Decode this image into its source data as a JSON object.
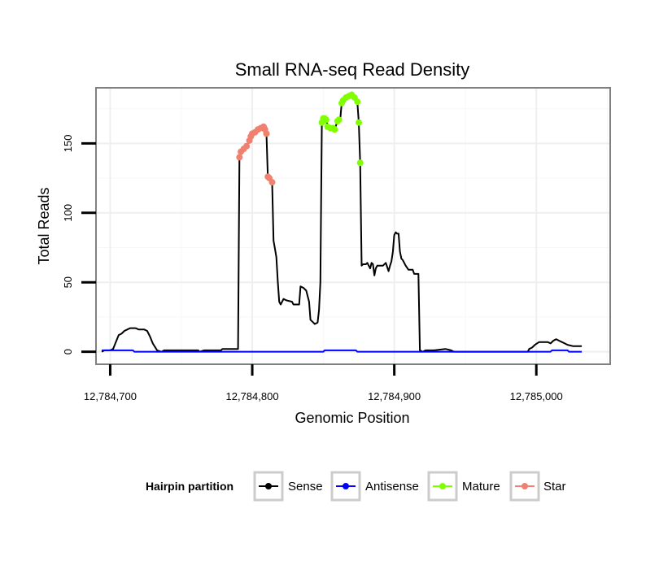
{
  "chart_data": {
    "type": "line",
    "title": "Small RNA-seq Read Density",
    "xlabel": "Genomic Position",
    "ylabel": "Total Reads",
    "xlim": [
      12784690,
      12785052
    ],
    "ylim": [
      -9,
      190
    ],
    "x_ticks": [
      12784700,
      12784800,
      12784900,
      12785000
    ],
    "x_tick_labels": [
      "12,784,700",
      "12,784,800",
      "12,784,900",
      "12,785,000"
    ],
    "y_ticks": [
      0,
      50,
      100,
      150
    ],
    "y_tick_labels": [
      "0",
      "50",
      "100",
      "150"
    ],
    "grid": true,
    "legend": {
      "title": "Hairpin partition",
      "position": "bottom",
      "entries": [
        {
          "label": "Sense",
          "color": "#000000"
        },
        {
          "label": "Antisense",
          "color": "#0000ff"
        },
        {
          "label": "Mature",
          "color": "#7fff00"
        },
        {
          "label": "Star",
          "color": "#f08070"
        }
      ]
    },
    "series": [
      {
        "name": "Sense",
        "color": "#000000",
        "style": "line",
        "points": [
          [
            12784694,
            0
          ],
          [
            12784696,
            1
          ],
          [
            12784700,
            1
          ],
          [
            12784702,
            2
          ],
          [
            12784704,
            7
          ],
          [
            12784706,
            12
          ],
          [
            12784708,
            13
          ],
          [
            12784710,
            15
          ],
          [
            12784712,
            16
          ],
          [
            12784714,
            17
          ],
          [
            12784718,
            17
          ],
          [
            12784720,
            16
          ],
          [
            12784724,
            16
          ],
          [
            12784726,
            15
          ],
          [
            12784728,
            11
          ],
          [
            12784730,
            6
          ],
          [
            12784733,
            1
          ],
          [
            12784736,
            0
          ],
          [
            12784738,
            1
          ],
          [
            12784762,
            1
          ],
          [
            12784763,
            0
          ],
          [
            12784766,
            1
          ],
          [
            12784778,
            1
          ],
          [
            12784779,
            2
          ],
          [
            12784790,
            2
          ],
          [
            12784791,
            140
          ],
          [
            12784792,
            144
          ],
          [
            12784794,
            146
          ],
          [
            12784796,
            148
          ],
          [
            12784798,
            152
          ],
          [
            12784800,
            157
          ],
          [
            12784802,
            158
          ],
          [
            12784804,
            160
          ],
          [
            12784806,
            161
          ],
          [
            12784808,
            162
          ],
          [
            12784809,
            160
          ],
          [
            12784810,
            157
          ],
          [
            12784811,
            126
          ],
          [
            12784812,
            125
          ],
          [
            12784814,
            122
          ],
          [
            12784815,
            80
          ],
          [
            12784816,
            74
          ],
          [
            12784817,
            68
          ],
          [
            12784818,
            50
          ],
          [
            12784819,
            36
          ],
          [
            12784820,
            34
          ],
          [
            12784822,
            38
          ],
          [
            12784824,
            37
          ],
          [
            12784828,
            36
          ],
          [
            12784829,
            34
          ],
          [
            12784833,
            34
          ],
          [
            12784834,
            47
          ],
          [
            12784836,
            46
          ],
          [
            12784838,
            44
          ],
          [
            12784840,
            36
          ],
          [
            12784841,
            23
          ],
          [
            12784843,
            21
          ],
          [
            12784844,
            20
          ],
          [
            12784846,
            21
          ],
          [
            12784847,
            30
          ],
          [
            12784848,
            50
          ],
          [
            12784849,
            165
          ],
          [
            12784850,
            168
          ],
          [
            12784852,
            168
          ],
          [
            12784853,
            162
          ],
          [
            12784855,
            161
          ],
          [
            12784857,
            161
          ],
          [
            12784858,
            160
          ],
          [
            12784860,
            166
          ],
          [
            12784862,
            168
          ],
          [
            12784863,
            179
          ],
          [
            12784864,
            181
          ],
          [
            12784866,
            183
          ],
          [
            12784868,
            184
          ],
          [
            12784870,
            185
          ],
          [
            12784872,
            183
          ],
          [
            12784874,
            180
          ],
          [
            12784875,
            165
          ],
          [
            12784876,
            136
          ],
          [
            12784877,
            62
          ],
          [
            12784878,
            63
          ],
          [
            12784880,
            63
          ],
          [
            12784881,
            64
          ],
          [
            12784882,
            62
          ],
          [
            12784883,
            60
          ],
          [
            12784884,
            64
          ],
          [
            12784885,
            63
          ],
          [
            12784886,
            55
          ],
          [
            12784887,
            60
          ],
          [
            12784888,
            62
          ],
          [
            12784892,
            62
          ],
          [
            12784894,
            64
          ],
          [
            12784896,
            58
          ],
          [
            12784897,
            62
          ],
          [
            12784898,
            65
          ],
          [
            12784899,
            72
          ],
          [
            12784900,
            84
          ],
          [
            12784901,
            86
          ],
          [
            12784902,
            85
          ],
          [
            12784903,
            85
          ],
          [
            12784904,
            72
          ],
          [
            12784905,
            67
          ],
          [
            12784906,
            66
          ],
          [
            12784908,
            62
          ],
          [
            12784910,
            59
          ],
          [
            12784911,
            59
          ],
          [
            12784913,
            59
          ],
          [
            12784914,
            56
          ],
          [
            12784917,
            56
          ],
          [
            12784918,
            1
          ],
          [
            12784920,
            0
          ],
          [
            12784922,
            1
          ],
          [
            12784928,
            1
          ],
          [
            12784936,
            2
          ],
          [
            12784940,
            1
          ],
          [
            12784942,
            0
          ],
          [
            12784950,
            0
          ],
          [
            12784968,
            0
          ],
          [
            12784994,
            0
          ],
          [
            12784995,
            2
          ],
          [
            12784997,
            3
          ],
          [
            12784999,
            5
          ],
          [
            12785002,
            7
          ],
          [
            12785008,
            7
          ],
          [
            12785010,
            6
          ],
          [
            12785012,
            8
          ],
          [
            12785014,
            9
          ],
          [
            12785016,
            8
          ],
          [
            12785018,
            7
          ],
          [
            12785020,
            6
          ],
          [
            12785022,
            5
          ],
          [
            12785026,
            4
          ],
          [
            12785032,
            4
          ]
        ]
      },
      {
        "name": "Antisense",
        "color": "#0000ff",
        "style": "line",
        "points": [
          [
            12784694,
            1
          ],
          [
            12784702,
            1
          ],
          [
            12784716,
            1
          ],
          [
            12784717,
            0
          ],
          [
            12784850,
            0
          ],
          [
            12784851,
            1
          ],
          [
            12784873,
            1
          ],
          [
            12784874,
            0
          ],
          [
            12785010,
            0
          ],
          [
            12785011,
            1
          ],
          [
            12785022,
            1
          ],
          [
            12785023,
            0
          ],
          [
            12785032,
            0
          ]
        ]
      },
      {
        "name": "Mature",
        "color": "#7fff00",
        "style": "points",
        "points": [
          [
            12784849,
            165
          ],
          [
            12784850,
            168
          ],
          [
            12784851,
            168
          ],
          [
            12784852,
            167
          ],
          [
            12784853,
            162
          ],
          [
            12784855,
            161
          ],
          [
            12784857,
            161
          ],
          [
            12784858,
            160
          ],
          [
            12784860,
            166
          ],
          [
            12784861,
            167
          ],
          [
            12784863,
            179
          ],
          [
            12784864,
            181
          ],
          [
            12784866,
            183
          ],
          [
            12784868,
            184
          ],
          [
            12784870,
            185
          ],
          [
            12784872,
            183
          ],
          [
            12784874,
            180
          ],
          [
            12784875,
            165
          ],
          [
            12784876,
            136
          ]
        ]
      },
      {
        "name": "Star",
        "color": "#f08070",
        "style": "points",
        "points": [
          [
            12784791,
            140
          ],
          [
            12784792,
            144
          ],
          [
            12784794,
            146
          ],
          [
            12784796,
            148
          ],
          [
            12784798,
            152
          ],
          [
            12784799,
            155
          ],
          [
            12784800,
            157
          ],
          [
            12784802,
            158
          ],
          [
            12784804,
            160
          ],
          [
            12784806,
            161
          ],
          [
            12784808,
            162
          ],
          [
            12784809,
            160
          ],
          [
            12784810,
            157
          ],
          [
            12784811,
            126
          ],
          [
            12784812,
            125
          ],
          [
            12784814,
            122
          ]
        ]
      }
    ]
  }
}
